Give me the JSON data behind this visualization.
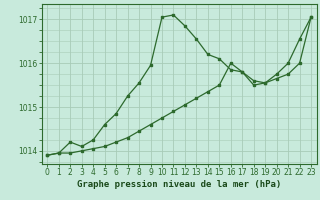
{
  "line1_x": [
    0,
    1,
    2,
    3,
    4,
    5,
    6,
    7,
    8,
    9,
    10,
    11,
    12,
    13,
    14,
    15,
    16,
    17,
    18,
    19,
    20,
    21,
    22,
    23
  ],
  "line1_y": [
    1013.9,
    1013.95,
    1014.2,
    1014.1,
    1014.25,
    1014.6,
    1014.85,
    1015.25,
    1015.55,
    1015.95,
    1017.05,
    1017.1,
    1016.85,
    1016.55,
    1016.2,
    1016.1,
    1015.85,
    1015.8,
    1015.5,
    1015.55,
    1015.75,
    1016.0,
    1016.55,
    1017.05
  ],
  "line2_x": [
    0,
    1,
    2,
    3,
    4,
    5,
    6,
    7,
    8,
    9,
    10,
    11,
    12,
    13,
    14,
    15,
    16,
    17,
    18,
    19,
    20,
    21,
    22,
    23
  ],
  "line2_y": [
    1013.9,
    1013.95,
    1013.95,
    1014.0,
    1014.05,
    1014.1,
    1014.2,
    1014.3,
    1014.45,
    1014.6,
    1014.75,
    1014.9,
    1015.05,
    1015.2,
    1015.35,
    1015.5,
    1016.0,
    1015.8,
    1015.6,
    1015.55,
    1015.65,
    1015.75,
    1016.0,
    1017.05
  ],
  "line_color": "#2d6a2d",
  "bg_color": "#c8eadc",
  "grid_color": "#a8ccb8",
  "axis_color": "#2d6a2d",
  "text_color": "#1a4a1a",
  "ylim": [
    1013.7,
    1017.35
  ],
  "xlim": [
    -0.5,
    23.5
  ],
  "yticks": [
    1014,
    1015,
    1016,
    1017
  ],
  "xticks": [
    0,
    1,
    2,
    3,
    4,
    5,
    6,
    7,
    8,
    9,
    10,
    11,
    12,
    13,
    14,
    15,
    16,
    17,
    18,
    19,
    20,
    21,
    22,
    23
  ],
  "xlabel": "Graphe pression niveau de la mer (hPa)",
  "marker": "s",
  "markersize": 2.0,
  "linewidth": 0.9,
  "tick_fontsize": 5.5,
  "xlabel_fontsize": 6.5
}
